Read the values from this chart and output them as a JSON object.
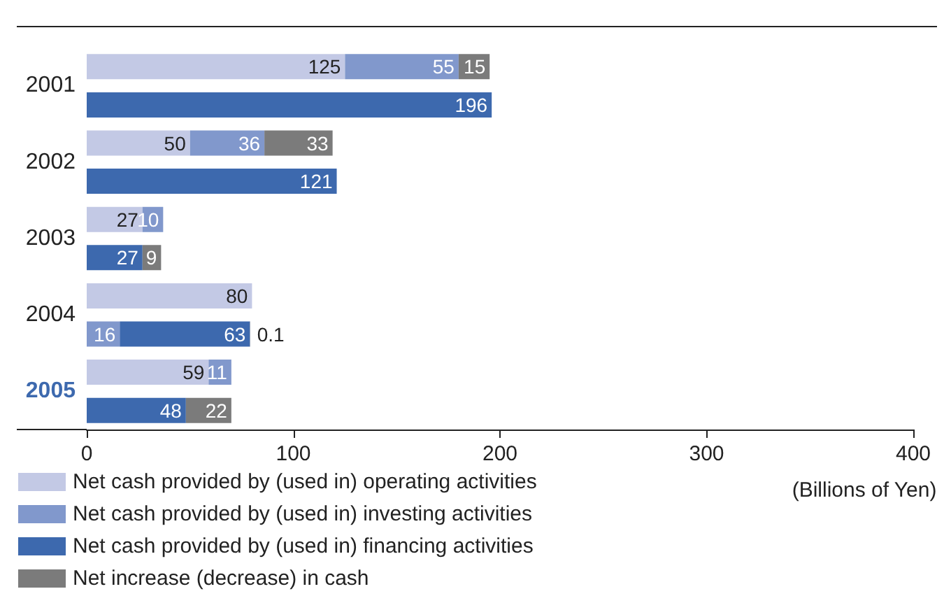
{
  "chart_data": {
    "type": "bar",
    "orientation": "horizontal",
    "stacked": true,
    "xlabel": "(Billions of Yen)",
    "categories": [
      "2001",
      null,
      "2002",
      null,
      "2003",
      null,
      "2004",
      null,
      "2005",
      null
    ],
    "series": [
      {
        "name": "Net cash provided by (used in) operating activities",
        "color": "#c3c9e5",
        "values": [
          125,
          null,
          50,
          null,
          27,
          null,
          80,
          null,
          59,
          null
        ]
      },
      {
        "name": "Net cash provided by (used in) investing activities",
        "color": "#8198cc",
        "values": [
          55,
          null,
          36,
          null,
          10,
          null,
          null,
          16,
          11,
          null
        ]
      },
      {
        "name": "Net cash provided by (used in) financing activities",
        "color": "#3d69ae",
        "values": [
          null,
          196,
          null,
          121,
          null,
          27,
          null,
          63,
          null,
          48
        ]
      },
      {
        "name": "Net increase (decrease) in cash",
        "color": "#7b7b7b",
        "values": [
          15,
          null,
          33,
          null,
          null,
          9,
          null,
          0.1,
          null,
          22
        ]
      }
    ],
    "xlim": [
      0,
      400
    ],
    "xticks": [
      0,
      100,
      200,
      300,
      400
    ],
    "grid": false,
    "legend": "bottom left",
    "data_labels": true
  }
}
